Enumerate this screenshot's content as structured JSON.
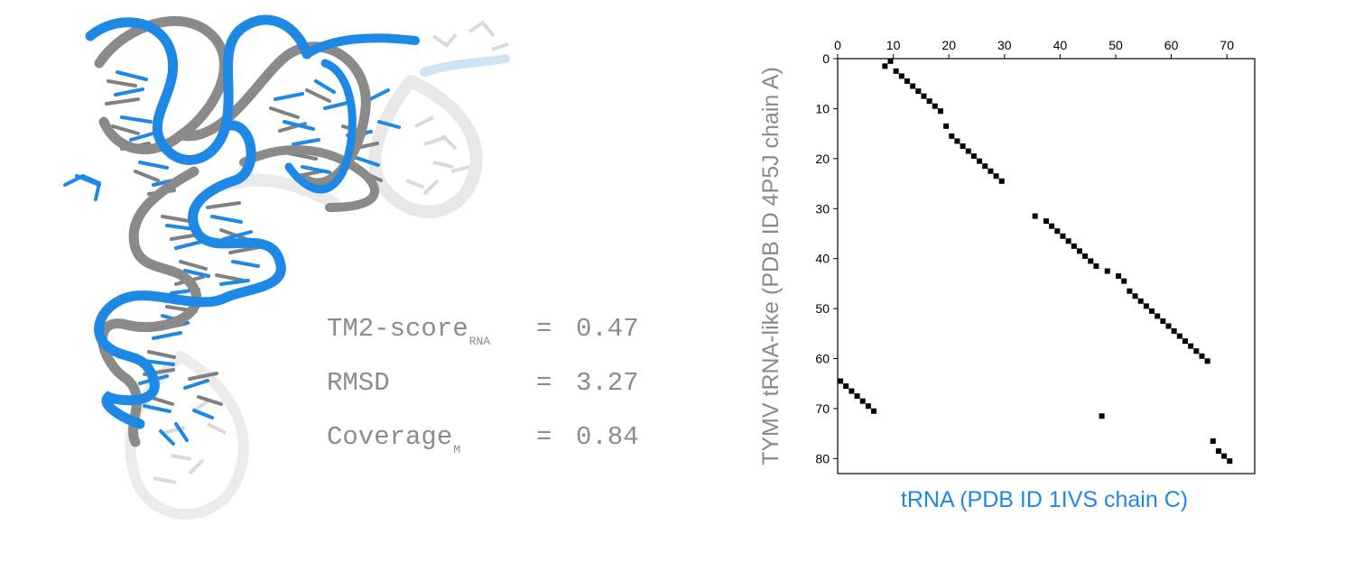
{
  "colors": {
    "blue": "#1e88e5",
    "gray": "#8a8a8a",
    "faint": "#e6e6e6",
    "text_gray": "#8c8c8c",
    "marker": "#000000"
  },
  "metrics": [
    {
      "label": "TM2-score",
      "subscript": "RNA",
      "equals": "=",
      "value": "0.47"
    },
    {
      "label": "RMSD",
      "subscript": "",
      "equals": "=",
      "value": "3.27"
    },
    {
      "label": "Coverage",
      "subscript": "M",
      "equals": "=",
      "value": "0.84"
    }
  ],
  "chart_data": {
    "type": "scatter",
    "xlabel": "tRNA (PDB ID 1IVS chain C)",
    "ylabel": "TYMV tRNA-like (PDB ID 4P5J chain A)",
    "xlim": [
      0,
      75
    ],
    "ylim": [
      83,
      0
    ],
    "x_axis_position": "top",
    "y_axis_inverted": true,
    "x_ticks": [
      0,
      10,
      20,
      30,
      40,
      50,
      60,
      70
    ],
    "y_ticks": [
      0,
      10,
      20,
      30,
      40,
      50,
      60,
      70,
      80
    ],
    "grid": false,
    "legend": "none",
    "points": [
      [
        8.5,
        1.5
      ],
      [
        9.5,
        0.5
      ],
      [
        10.5,
        2.5
      ],
      [
        11.5,
        3.5
      ],
      [
        12.5,
        4.5
      ],
      [
        13.5,
        5.5
      ],
      [
        14.5,
        6.5
      ],
      [
        15.5,
        7.5
      ],
      [
        16.5,
        8.5
      ],
      [
        17.5,
        9.5
      ],
      [
        18.5,
        10.5
      ],
      [
        19.5,
        13.5
      ],
      [
        20.5,
        15.5
      ],
      [
        21.5,
        16.5
      ],
      [
        22.5,
        17.5
      ],
      [
        23.5,
        18.5
      ],
      [
        24.5,
        19.5
      ],
      [
        25.5,
        20.5
      ],
      [
        26.5,
        21.5
      ],
      [
        27.5,
        22.5
      ],
      [
        28.5,
        23.5
      ],
      [
        29.5,
        24.5
      ],
      [
        35.5,
        31.5
      ],
      [
        37.5,
        32.5
      ],
      [
        38.5,
        33.5
      ],
      [
        39.5,
        34.5
      ],
      [
        40.5,
        35.5
      ],
      [
        41.5,
        36.5
      ],
      [
        42.5,
        37.5
      ],
      [
        43.5,
        38.5
      ],
      [
        44.5,
        39.5
      ],
      [
        45.5,
        40.5
      ],
      [
        46.5,
        41.5
      ],
      [
        48.5,
        42.5
      ],
      [
        50.5,
        43.5
      ],
      [
        51.5,
        44.5
      ],
      [
        52.5,
        46.5
      ],
      [
        53.5,
        47.5
      ],
      [
        54.5,
        48.5
      ],
      [
        55.5,
        49.5
      ],
      [
        56.5,
        50.5
      ],
      [
        57.5,
        51.5
      ],
      [
        58.5,
        52.5
      ],
      [
        59.5,
        53.5
      ],
      [
        60.5,
        54.5
      ],
      [
        61.5,
        55.5
      ],
      [
        62.5,
        56.5
      ],
      [
        63.5,
        57.5
      ],
      [
        64.5,
        58.5
      ],
      [
        65.5,
        59.5
      ],
      [
        66.5,
        60.5
      ],
      [
        0.5,
        64.5
      ],
      [
        1.5,
        65.5
      ],
      [
        2.5,
        66.5
      ],
      [
        3.5,
        67.5
      ],
      [
        4.5,
        68.5
      ],
      [
        5.5,
        69.5
      ],
      [
        6.5,
        70.5
      ],
      [
        47.5,
        71.5
      ],
      [
        67.5,
        76.5
      ],
      [
        68.5,
        78.5
      ],
      [
        69.5,
        79.5
      ],
      [
        70.5,
        80.5
      ]
    ]
  }
}
